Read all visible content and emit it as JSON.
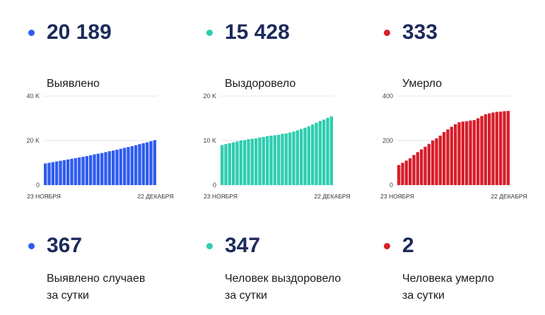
{
  "colors": {
    "blue": "#2f5cf0",
    "teal": "#2ecdb0",
    "red": "#d81e2a",
    "value_text": "#1c2a5c"
  },
  "panels": [
    {
      "total": "20 189",
      "label": "Выявлено",
      "today_value": "367",
      "today_label_1": "Выявлено случаев",
      "today_label_2": "за сутки",
      "color": "#2f5cf0"
    },
    {
      "total": "15 428",
      "label": "Выздоровело",
      "today_value": "347",
      "today_label_1": "Человек выздоровело",
      "today_label_2": "за сутки",
      "color": "#2ecdb0"
    },
    {
      "total": "333",
      "label": "Умерло",
      "today_value": "2",
      "today_label_1": "Человека умерло",
      "today_label_2": "за сутки",
      "color": "#d81e2a"
    }
  ],
  "chart_data": [
    {
      "type": "bar",
      "x_start_label": "23 НОЯБРЯ",
      "x_end_label": "22 ДЕКАБРЯ",
      "ylim": [
        0,
        40000
      ],
      "yticks": [
        0,
        20000,
        40000
      ],
      "ytick_labels": [
        "0",
        "20 K",
        "40 K"
      ],
      "color": "#2f5cf0",
      "values": [
        9700,
        10000,
        10300,
        10600,
        10900,
        11200,
        11500,
        11800,
        12100,
        12400,
        12700,
        13000,
        13400,
        13800,
        14100,
        14400,
        14800,
        15200,
        15500,
        15900,
        16300,
        16700,
        17100,
        17500,
        17900,
        18400,
        18800,
        19200,
        19700,
        20189
      ]
    },
    {
      "type": "bar",
      "x_start_label": "23 НОЯБРЯ",
      "x_end_label": "22 ДЕКАБРЯ",
      "ylim": [
        0,
        20000
      ],
      "yticks": [
        0,
        10000,
        20000
      ],
      "ytick_labels": [
        "0",
        "10 K",
        "20 K"
      ],
      "color": "#2ecdb0",
      "values": [
        9000,
        9200,
        9400,
        9600,
        9800,
        10000,
        10100,
        10300,
        10400,
        10500,
        10700,
        10800,
        11000,
        11100,
        11200,
        11300,
        11500,
        11600,
        11800,
        12000,
        12300,
        12600,
        12900,
        13200,
        13600,
        14000,
        14400,
        14700,
        15100,
        15428
      ]
    },
    {
      "type": "bar",
      "x_start_label": "23 НОЯБРЯ",
      "x_end_label": "22 ДЕКАБРЯ",
      "ylim": [
        0,
        400
      ],
      "yticks": [
        0,
        200,
        400
      ],
      "ytick_labels": [
        "0",
        "200",
        "400"
      ],
      "color": "#d81e2a",
      "values": [
        90,
        100,
        110,
        120,
        135,
        148,
        160,
        172,
        185,
        200,
        210,
        222,
        238,
        250,
        262,
        273,
        282,
        285,
        287,
        290,
        292,
        300,
        310,
        318,
        322,
        326,
        329,
        330,
        332,
        333
      ]
    }
  ]
}
